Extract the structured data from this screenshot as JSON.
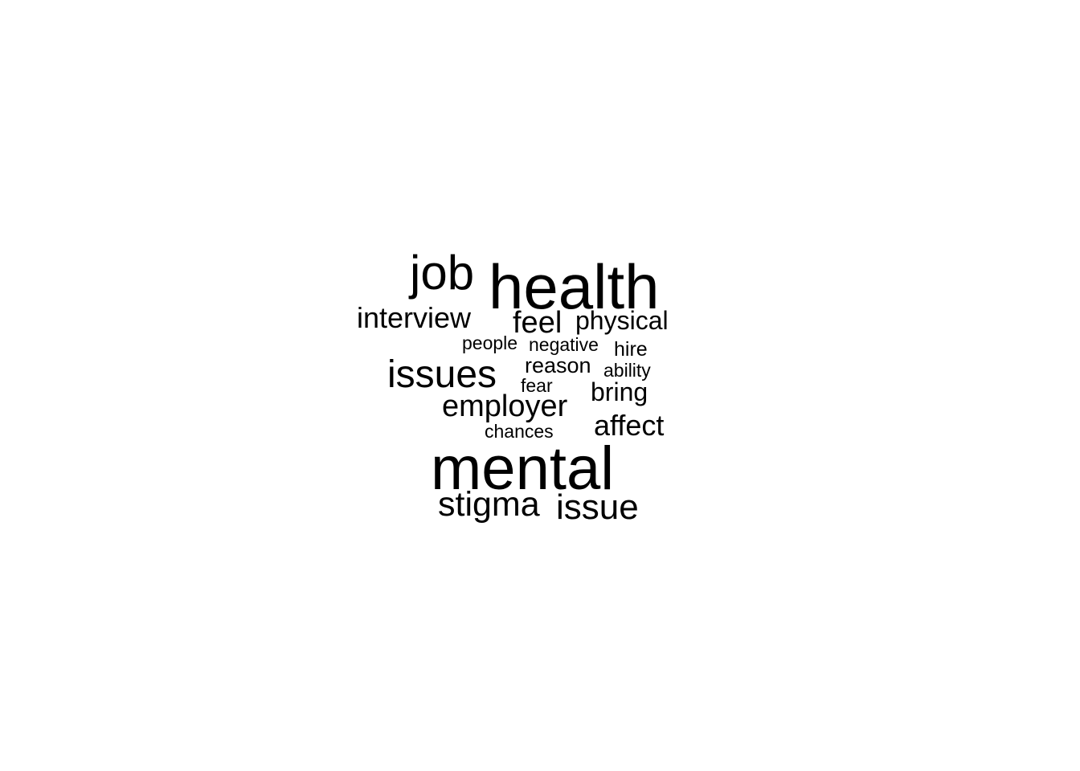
{
  "wordcloud": {
    "color": "#000000",
    "background": "#ffffff",
    "words": {
      "health": "health",
      "mental": "mental",
      "job": "job",
      "issues": "issues",
      "interview": "interview",
      "feel": "feel",
      "physical": "physical",
      "people": "people",
      "negative": "negative",
      "hire": "hire",
      "reason": "reason",
      "ability": "ability",
      "fear": "fear",
      "bring": "bring",
      "employer": "employer",
      "affect": "affect",
      "chances": "chances",
      "stigma": "stigma",
      "issue": "issue"
    }
  }
}
